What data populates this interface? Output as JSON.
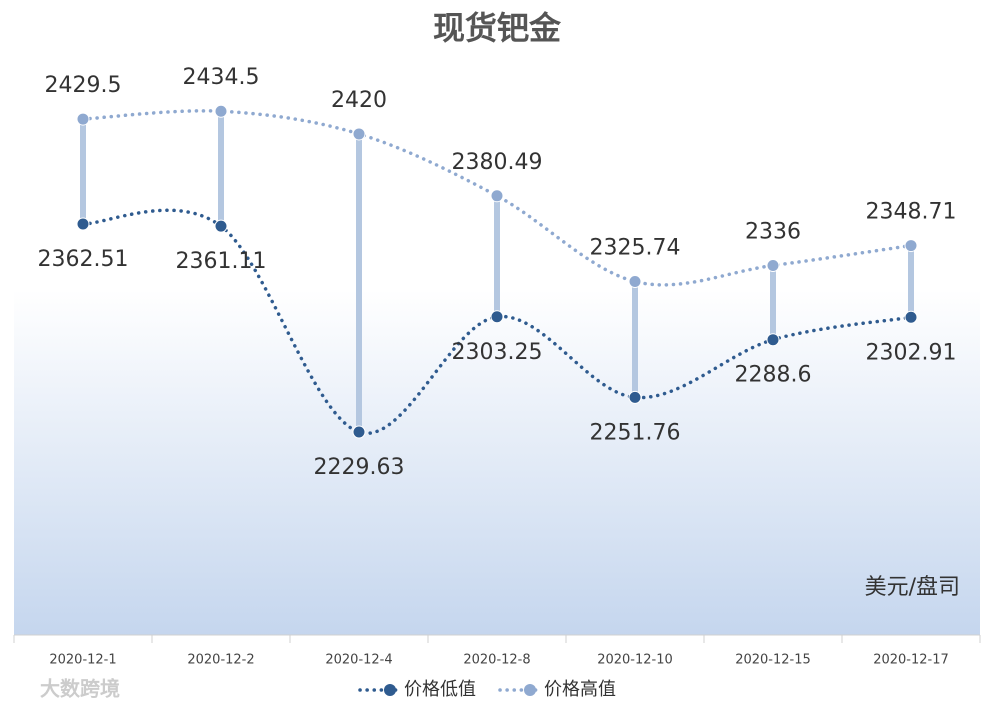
{
  "chart_data": {
    "type": "line",
    "title": "现货钯金",
    "unit_label": "美元/盘司",
    "watermark": "大数跨境",
    "categories": [
      "2020-12-1",
      "2020-12-2",
      "2020-12-4",
      "2020-12-8",
      "2020-12-10",
      "2020-12-15",
      "2020-12-17"
    ],
    "series": [
      {
        "name": "价格低值",
        "color": "#2f5b8f",
        "values": [
          2362.51,
          2361.11,
          2229.63,
          2303.25,
          2251.76,
          2288.6,
          2302.91
        ]
      },
      {
        "name": "价格高值",
        "color": "#8fa9d0",
        "values": [
          2429.5,
          2434.5,
          2420,
          2380.49,
          2325.74,
          2336,
          2348.71
        ]
      }
    ],
    "ylim": [
      2100,
      2480
    ],
    "high_low_color": "#b4c7e0",
    "smooth": true,
    "legend": "bottom"
  }
}
